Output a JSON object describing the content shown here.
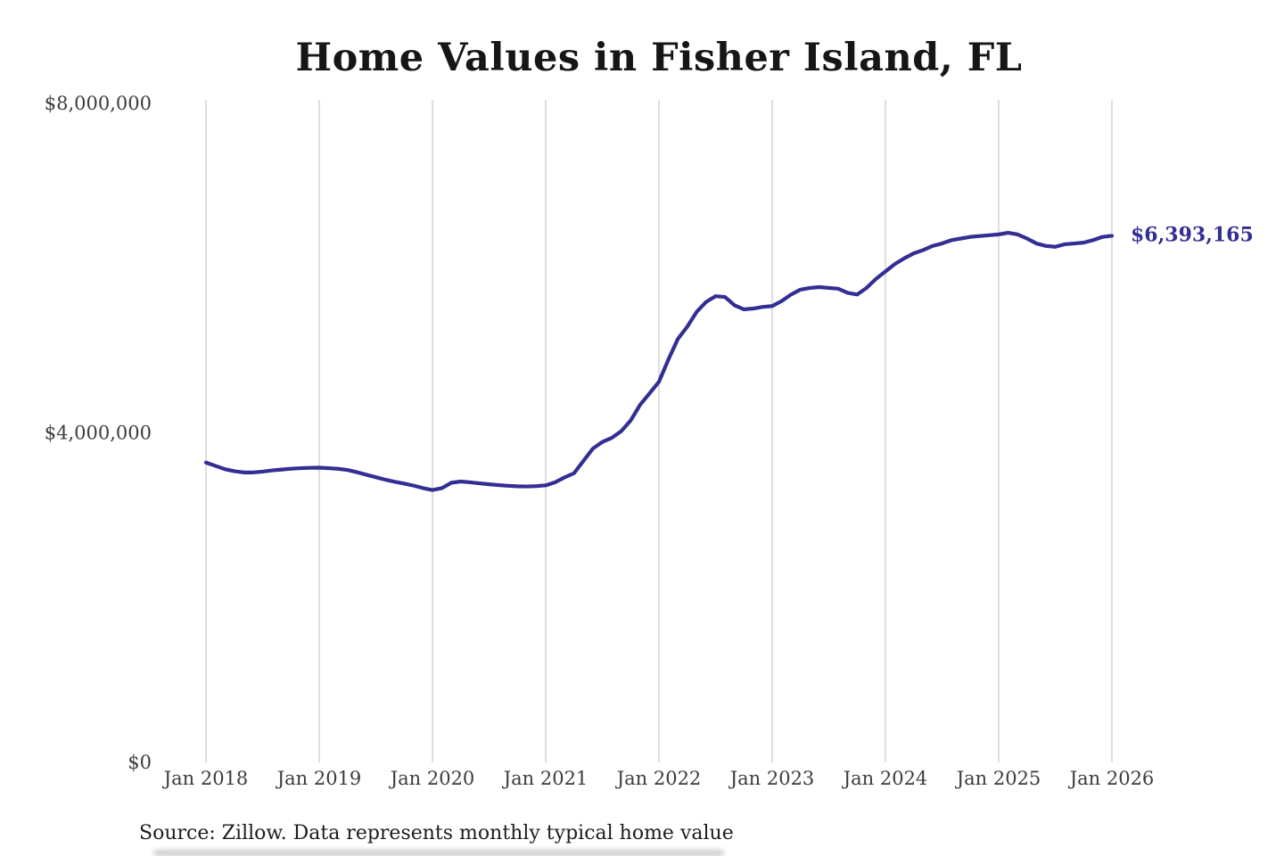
{
  "page": {
    "background_color": "#ffffff"
  },
  "chart_data": {
    "type": "line",
    "title": "Home Values in Fisher Island, FL",
    "xlabel": "",
    "ylabel": "",
    "ylim": [
      0,
      8000000
    ],
    "grid": "vertical-only",
    "grid_color": "#c9c9c9",
    "line_color": "#322e93",
    "text_color": "#3c3c3c",
    "legend": "none",
    "x_tick_labels": [
      "Jan 2018",
      "Jan 2019",
      "Jan 2020",
      "Jan 2021",
      "Jan 2022",
      "Jan 2023",
      "Jan 2024",
      "Jan 2025",
      "Jan 2026"
    ],
    "y_ticks": [
      {
        "label": "$0",
        "value": 0
      },
      {
        "label": "$4,000,000",
        "value": 4000000
      },
      {
        "label": "$8,000,000",
        "value": 8000000
      }
    ],
    "annotation": {
      "label": "$6,393,165",
      "value": 6393165,
      "color": "#322e93"
    },
    "source_note": "Source: Zillow. Data represents monthly typical home value",
    "x": [
      "2018-01",
      "2018-02",
      "2018-03",
      "2018-04",
      "2018-05",
      "2018-06",
      "2018-07",
      "2018-08",
      "2018-09",
      "2018-10",
      "2018-11",
      "2018-12",
      "2019-01",
      "2019-02",
      "2019-03",
      "2019-04",
      "2019-05",
      "2019-06",
      "2019-07",
      "2019-08",
      "2019-09",
      "2019-10",
      "2019-11",
      "2019-12",
      "2020-01",
      "2020-02",
      "2020-03",
      "2020-04",
      "2020-05",
      "2020-06",
      "2020-07",
      "2020-08",
      "2020-09",
      "2020-10",
      "2020-11",
      "2020-12",
      "2021-01",
      "2021-02",
      "2021-03",
      "2021-04",
      "2021-05",
      "2021-06",
      "2021-07",
      "2021-08",
      "2021-09",
      "2021-10",
      "2021-11",
      "2021-12",
      "2022-01",
      "2022-02",
      "2022-03",
      "2022-04",
      "2022-05",
      "2022-06",
      "2022-07",
      "2022-08",
      "2022-09",
      "2022-10",
      "2022-11",
      "2022-12",
      "2023-01",
      "2023-02",
      "2023-03",
      "2023-04",
      "2023-05",
      "2023-06",
      "2023-07",
      "2023-08",
      "2023-09",
      "2023-10",
      "2023-11",
      "2023-12",
      "2024-01",
      "2024-02",
      "2024-03",
      "2024-04",
      "2024-05",
      "2024-06",
      "2024-07",
      "2024-08",
      "2024-09",
      "2024-10",
      "2024-11",
      "2024-12",
      "2025-01",
      "2025-02",
      "2025-03",
      "2025-04",
      "2025-05",
      "2025-06",
      "2025-07",
      "2025-08",
      "2025-09",
      "2025-10",
      "2025-11",
      "2025-12",
      "2026-01"
    ],
    "values": [
      3640000,
      3600000,
      3560000,
      3535000,
      3520000,
      3520000,
      3530000,
      3545000,
      3555000,
      3565000,
      3572000,
      3576000,
      3578000,
      3572000,
      3564000,
      3550000,
      3523000,
      3492000,
      3462000,
      3432000,
      3407000,
      3385000,
      3360000,
      3330000,
      3307000,
      3330000,
      3395000,
      3410000,
      3400000,
      3388000,
      3376000,
      3366000,
      3358000,
      3352000,
      3350000,
      3354000,
      3363000,
      3400000,
      3460000,
      3510000,
      3660000,
      3810000,
      3890000,
      3940000,
      4020000,
      4150000,
      4340000,
      4480000,
      4620000,
      4890000,
      5140000,
      5290000,
      5470000,
      5590000,
      5660000,
      5650000,
      5550000,
      5500000,
      5510000,
      5530000,
      5540000,
      5600000,
      5680000,
      5740000,
      5760000,
      5770000,
      5760000,
      5750000,
      5700000,
      5680000,
      5760000,
      5870000,
      5960000,
      6050000,
      6120000,
      6180000,
      6220000,
      6270000,
      6300000,
      6340000,
      6360000,
      6380000,
      6390000,
      6400000,
      6410000,
      6430000,
      6410000,
      6360000,
      6300000,
      6270000,
      6260000,
      6290000,
      6300000,
      6310000,
      6340000,
      6380000,
      6393165
    ]
  }
}
